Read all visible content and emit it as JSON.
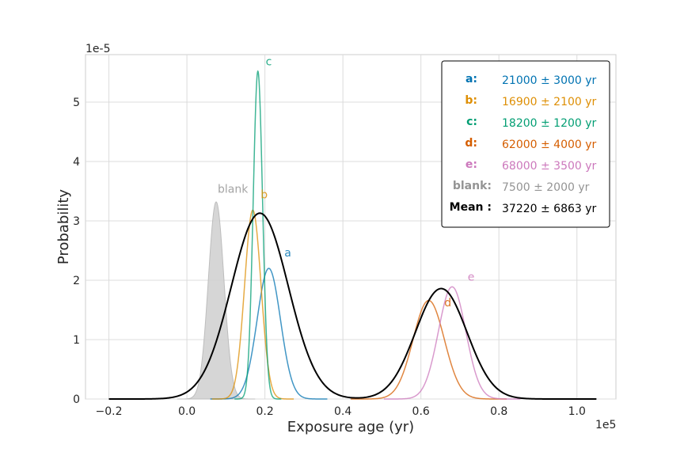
{
  "chart_data": {
    "type": "line",
    "title": "",
    "xlabel": "Exposure age (yr)",
    "ylabel": "Probability",
    "x_offset_label": "1e5",
    "y_offset_label": "1e-5",
    "xlim": [
      -0.26,
      1.1
    ],
    "ylim": [
      0,
      5.8
    ],
    "x_ticks": [
      -0.2,
      0.0,
      0.2,
      0.4,
      0.6,
      0.8,
      1.0
    ],
    "x_tick_labels": [
      "−0.2",
      "0.0",
      "0.2",
      "0.4",
      "0.6",
      "0.8",
      "1.0"
    ],
    "y_ticks": [
      0,
      1,
      2,
      3,
      4,
      5
    ],
    "y_tick_labels": [
      "0",
      "1",
      "2",
      "3",
      "4",
      "5"
    ],
    "grid": true,
    "legend_position": "top-right",
    "x_units_note": "x values in units of 1e5 yr, y values in units of 1e-5",
    "series": [
      {
        "name": "a",
        "mean": 21000,
        "sigma": 3000,
        "peak": 2.2,
        "color": "#0173b2",
        "value_text": "21000 ± 3000 yr",
        "label_dx": 0.04,
        "label_dy": 0.15
      },
      {
        "name": "b",
        "mean": 16900,
        "sigma": 2100,
        "peak": 3.18,
        "color": "#de8f05",
        "value_text": "16900 ± 2100 yr",
        "label_dx": 0.02,
        "label_dy": 0.15
      },
      {
        "name": "c",
        "mean": 18200,
        "sigma": 1200,
        "peak": 5.52,
        "color": "#029e73",
        "value_text": "18200 ± 1200 yr",
        "label_dx": 0.02,
        "label_dy": 0.05
      },
      {
        "name": "d",
        "mean": 62000,
        "sigma": 4000,
        "peak": 1.66,
        "color": "#d55e00",
        "value_text": "62000 ± 4000 yr",
        "label_dx": 0.04,
        "label_dy": -0.15
      },
      {
        "name": "e",
        "mean": 68000,
        "sigma": 3500,
        "peak": 1.89,
        "color": "#cc78bc",
        "value_text": "68000 ± 3500 yr",
        "label_dx": 0.04,
        "label_dy": 0.05
      },
      {
        "name": "blank",
        "mean": 7500,
        "sigma": 2000,
        "peak": 3.32,
        "color": "#949494",
        "value_text": "7500 ± 2000 yr",
        "filled": true,
        "label_dx": 0.0,
        "label_dy": 0.1
      },
      {
        "name": "Mean",
        "mean": 37220,
        "sigma": 6863,
        "color": "#000000",
        "value_text": "37220 ± 6863 yr",
        "mixture_of": [
          "a",
          "b",
          "c",
          "d",
          "e"
        ],
        "mixture_peaks": [
          3.13,
          1.86
        ]
      }
    ],
    "legend": [
      {
        "key": "a:",
        "value": "21000 ± 3000 yr",
        "color": "#0173b2"
      },
      {
        "key": "b:",
        "value": "16900 ± 2100 yr",
        "color": "#de8f05"
      },
      {
        "key": "c:",
        "value": "18200 ± 1200 yr",
        "color": "#029e73"
      },
      {
        "key": "d:",
        "value": "62000 ± 4000 yr",
        "color": "#d55e00"
      },
      {
        "key": "e:",
        "value": "68000 ± 3500 yr",
        "color": "#cc78bc"
      },
      {
        "key": "blank:",
        "value": "7500 ± 2000 yr",
        "color": "#949494"
      },
      {
        "key": "Mean :",
        "value": "37220 ± 6863 yr",
        "color": "#000000"
      }
    ]
  }
}
